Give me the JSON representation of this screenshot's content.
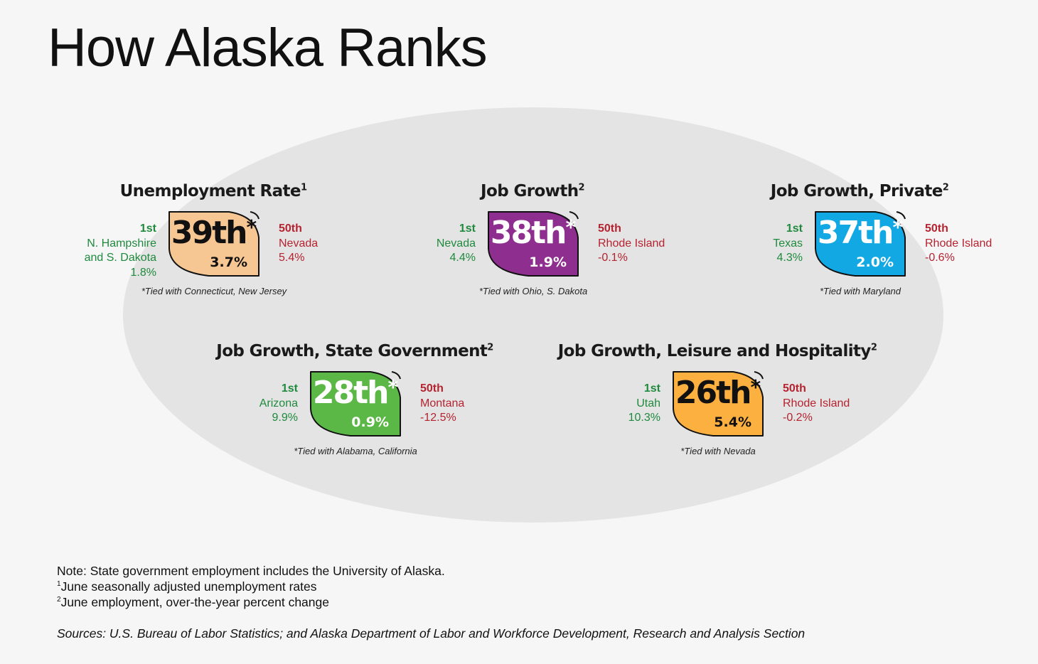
{
  "title": "How Alaska Ranks",
  "panels": [
    {
      "title": "Unemployment Rate",
      "note_marker": "1",
      "rank": "39th",
      "tie_marker": "*",
      "value": "3.7%",
      "color": "#f7c793",
      "text_color": "#111111",
      "value_color": "#111111",
      "best": {
        "label": "1st",
        "lines": [
          "N. Hampshire",
          "and S. Dakota",
          "1.8%"
        ]
      },
      "worst": {
        "label": "50th",
        "lines": [
          "Nevada",
          "5.4%"
        ]
      },
      "tie_note": "*Tied with Connecticut, New Jersey"
    },
    {
      "title": "Job Growth",
      "note_marker": "2",
      "rank": "38th",
      "tie_marker": "*",
      "value": "1.9%",
      "color": "#8e2e8e",
      "text_color": "#ffffff",
      "value_color": "#ffffff",
      "best": {
        "label": "1st",
        "lines": [
          "Nevada",
          "4.4%"
        ]
      },
      "worst": {
        "label": "50th",
        "lines": [
          "Rhode Island",
          "-0.1%"
        ]
      },
      "tie_note": "*Tied with Ohio, S. Dakota"
    },
    {
      "title": "Job Growth, Private",
      "note_marker": "2",
      "rank": "37th",
      "tie_marker": "*",
      "value": "2.0%",
      "color": "#12a8e3",
      "text_color": "#ffffff",
      "value_color": "#ffffff",
      "best": {
        "label": "1st",
        "lines": [
          "Texas",
          "4.3%"
        ]
      },
      "worst": {
        "label": "50th",
        "lines": [
          "Rhode Island",
          "-0.6%"
        ]
      },
      "tie_note": "*Tied with Maryland"
    },
    {
      "title": "Job Growth, State Government",
      "note_marker": "2",
      "rank": "28th",
      "tie_marker": "*",
      "value": "0.9%",
      "color": "#5cb846",
      "text_color": "#ffffff",
      "value_color": "#ffffff",
      "best": {
        "label": "1st",
        "lines": [
          "Arizona",
          "9.9%"
        ]
      },
      "worst": {
        "label": "50th",
        "lines": [
          "Montana",
          "-12.5%"
        ]
      },
      "tie_note": "*Tied with Alabama, California"
    },
    {
      "title": "Job Growth, Leisure and Hospitality",
      "note_marker": "2",
      "rank": "26th",
      "tie_marker": "*",
      "value": "5.4%",
      "color": "#fbb040",
      "text_color": "#111111",
      "value_color": "#111111",
      "best": {
        "label": "1st",
        "lines": [
          "Utah",
          "10.3%"
        ]
      },
      "worst": {
        "label": "50th",
        "lines": [
          "Rhode Island",
          "-0.2%"
        ]
      },
      "tie_note": "*Tied with Nevada"
    }
  ],
  "footnotes": {
    "note": "Note: State government employment includes the University of Alaska.",
    "fn1_marker": "1",
    "fn1_text": "June seasonally adjusted unemployment rates",
    "fn2_marker": "2",
    "fn2_text": "June employment, over-the-year percent change",
    "sources": "Sources: U.S. Bureau of Labor Statistics; and Alaska Department of Labor and Workforce Development, Research and Analysis Section"
  }
}
